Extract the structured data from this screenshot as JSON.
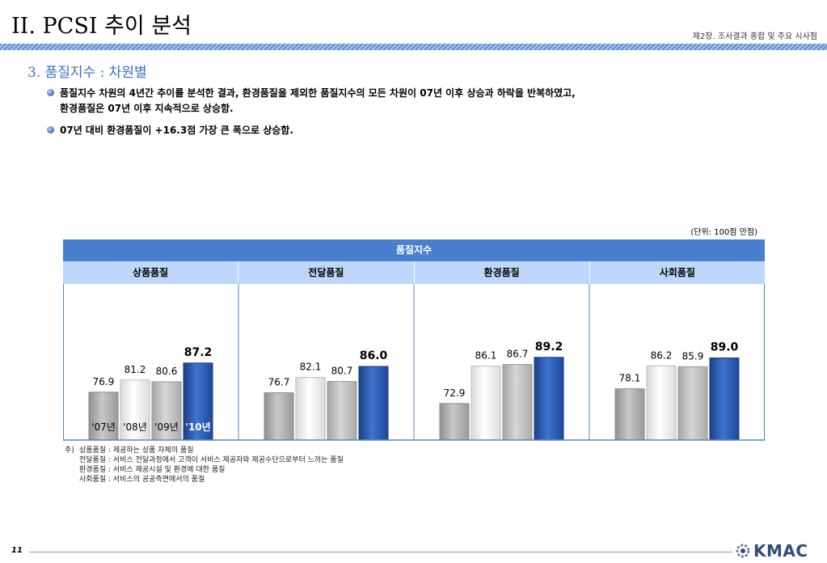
{
  "header": {
    "title": "II. PCSI 추이 분석",
    "chapter": "제2장. 조사결과 종합 및 주요 시사점"
  },
  "section": {
    "title": "3. 품질지수 : 차원별"
  },
  "bullets": [
    {
      "line1": "품질지수 차원의 4년간 추이를 분석한 결과, 환경품질을 제외한 품질지수의 모든 차원이 07년 이후 상승과 하락을 반복하였고,",
      "line2": "환경품질은 07년 이후 지속적으로 상승함."
    },
    {
      "line1": "07년 대비 환경품질이 +16.3점 가장 큰 폭으로 상승함."
    }
  ],
  "unit": "(단위: 100점 만점)",
  "table": {
    "header": "품질지수",
    "columns": [
      "상품품질",
      "전달품질",
      "환경품질",
      "사회품질"
    ]
  },
  "chart_data": {
    "type": "bar",
    "title": "품질지수",
    "groups": [
      "상품품질",
      "전달품질",
      "환경품질",
      "사회품질"
    ],
    "series": [
      {
        "name": "'07년",
        "values": [
          76.9,
          76.7,
          72.9,
          78.1
        ],
        "color": "#a6a6a6"
      },
      {
        "name": "'08년",
        "values": [
          81.2,
          82.1,
          86.1,
          86.2
        ],
        "color": "#f2f2f2"
      },
      {
        "name": "'09년",
        "values": [
          80.6,
          80.7,
          86.7,
          85.9
        ],
        "color": "#bdbdbd"
      },
      {
        "name": "'10년",
        "values": [
          87.2,
          86.0,
          89.2,
          89.0
        ],
        "color": "#2b5db8"
      }
    ],
    "year_labels": [
      "'07년",
      "'08년",
      "'09년",
      "'10년"
    ],
    "value_labels": [
      [
        "76.9",
        "81.2",
        "80.6",
        "87.2"
      ],
      [
        "76.7",
        "82.1",
        "80.7",
        "86.0"
      ],
      [
        "72.9",
        "86.1",
        "86.7",
        "89.2"
      ],
      [
        "78.1",
        "86.2",
        "85.9",
        "89.0"
      ]
    ],
    "ylim": [
      60,
      100
    ],
    "grid": false
  },
  "footnote": {
    "mark": "주)",
    "lines": [
      "상품품질 : 제공하는 상품 자체의 품질",
      "전달품질 : 서비스 전달과정에서 고객이 서비스 제공자와 제공수단으로부터 느끼는 품질",
      "환경품질 : 서비스 제공시설 및 환경에 대한 품질",
      "사회품질 : 서비스의 공공측면에서의 품질"
    ]
  },
  "footer": {
    "page_number": "11",
    "logo_text": "KMAC"
  }
}
